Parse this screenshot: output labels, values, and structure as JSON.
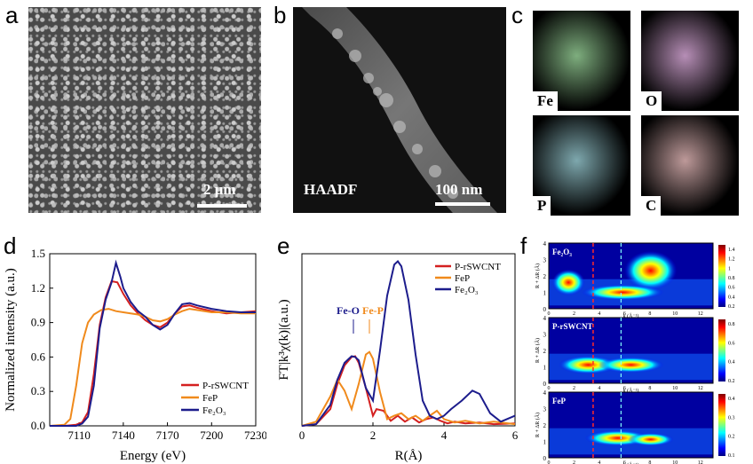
{
  "panels": {
    "a": {
      "label": "a",
      "scalebar": "2 μm"
    },
    "b": {
      "label": "b",
      "scalebar": "100 nm",
      "mode": "HAADF"
    },
    "c": {
      "label": "c",
      "maps": [
        "Fe",
        "O",
        "P",
        "C"
      ]
    },
    "d": {
      "label": "d"
    },
    "e": {
      "label": "e"
    },
    "f": {
      "label": "f"
    }
  },
  "chart_data": [
    {
      "type": "line",
      "panel": "d",
      "xlabel": "Energy (eV)",
      "ylabel": "Normalized intensity (a.u.)",
      "xlim": [
        7090,
        7230
      ],
      "ylim": [
        0,
        1.5
      ],
      "xticks": [
        "7110",
        "7140",
        "7170",
        "7200",
        "7230"
      ],
      "yticks": [
        "0.0",
        "0.3",
        "0.6",
        "0.9",
        "1.2",
        "1.5"
      ],
      "legend_position": "lower-right",
      "series": [
        {
          "name": "P-rSWCNT",
          "color": "#d42020",
          "x": [
            7090,
            7100,
            7108,
            7112,
            7116,
            7120,
            7124,
            7128,
            7132,
            7136,
            7140,
            7145,
            7150,
            7155,
            7160,
            7165,
            7170,
            7175,
            7180,
            7185,
            7190,
            7200,
            7210,
            7220,
            7230
          ],
          "y": [
            0.0,
            0.0,
            0.01,
            0.03,
            0.12,
            0.45,
            0.88,
            1.12,
            1.26,
            1.25,
            1.15,
            1.05,
            0.98,
            0.92,
            0.88,
            0.86,
            0.9,
            0.98,
            1.04,
            1.05,
            1.03,
            1.0,
            0.98,
            0.99,
            1.0
          ]
        },
        {
          "name": "FeP",
          "color": "#f08a1c",
          "x": [
            7090,
            7100,
            7104,
            7108,
            7112,
            7116,
            7120,
            7125,
            7130,
            7135,
            7140,
            7145,
            7150,
            7155,
            7160,
            7165,
            7170,
            7175,
            7180,
            7185,
            7190,
            7200,
            7210,
            7220,
            7230
          ],
          "y": [
            0.0,
            0.01,
            0.06,
            0.35,
            0.72,
            0.9,
            0.97,
            1.01,
            1.02,
            1.0,
            0.99,
            0.98,
            0.97,
            0.95,
            0.92,
            0.91,
            0.93,
            0.97,
            1.0,
            1.02,
            1.01,
            0.99,
            0.99,
            0.98,
            0.98
          ]
        },
        {
          "name": "Fe₂O₃",
          "color": "#1c1c8c",
          "x": [
            7090,
            7100,
            7108,
            7112,
            7116,
            7120,
            7124,
            7128,
            7132,
            7135,
            7138,
            7140,
            7145,
            7150,
            7155,
            7160,
            7165,
            7170,
            7175,
            7180,
            7185,
            7190,
            7200,
            7210,
            7220,
            7230
          ],
          "y": [
            0.0,
            0.0,
            0.0,
            0.02,
            0.08,
            0.35,
            0.85,
            1.1,
            1.25,
            1.42,
            1.3,
            1.2,
            1.08,
            1.0,
            0.95,
            0.88,
            0.84,
            0.88,
            0.98,
            1.06,
            1.07,
            1.05,
            1.02,
            1.0,
            0.99,
            0.99
          ]
        }
      ]
    },
    {
      "type": "line",
      "panel": "e",
      "xlabel": "R(Å)",
      "ylabel": "FT|k³χ(k)|(a.u.)",
      "xlim": [
        0,
        6
      ],
      "xticks": [
        "0",
        "2",
        "4",
        "6"
      ],
      "legend_position": "top-right",
      "annotations": [
        {
          "text": "Fe-O",
          "x": 1.45,
          "color": "#1c1c8c"
        },
        {
          "text": "Fe-P",
          "x": 1.9,
          "color": "#f08a1c"
        }
      ],
      "series": [
        {
          "name": "P-rSWCNT",
          "color": "#d42020",
          "x": [
            0,
            0.4,
            0.8,
            1.0,
            1.2,
            1.4,
            1.5,
            1.6,
            1.8,
            2.0,
            2.1,
            2.3,
            2.5,
            2.7,
            2.9,
            3.1,
            3.3,
            3.5,
            3.7,
            3.9,
            4.1,
            4.3,
            4.6,
            5.0,
            5.4,
            6.0
          ],
          "y": [
            0.0,
            0.02,
            0.2,
            0.5,
            0.72,
            0.82,
            0.83,
            0.75,
            0.45,
            0.12,
            0.2,
            0.18,
            0.06,
            0.12,
            0.05,
            0.1,
            0.04,
            0.08,
            0.1,
            0.06,
            0.03,
            0.05,
            0.03,
            0.04,
            0.02,
            0.03
          ]
        },
        {
          "name": "FeP",
          "color": "#f08a1c",
          "x": [
            0,
            0.4,
            0.8,
            1.0,
            1.2,
            1.4,
            1.6,
            1.8,
            1.9,
            2.0,
            2.2,
            2.4,
            2.6,
            2.8,
            3.0,
            3.2,
            3.4,
            3.6,
            3.8,
            4.0,
            4.3,
            4.6,
            5.0,
            5.4,
            6.0
          ],
          "y": [
            0.0,
            0.05,
            0.35,
            0.55,
            0.42,
            0.2,
            0.5,
            0.85,
            0.88,
            0.8,
            0.4,
            0.08,
            0.12,
            0.15,
            0.08,
            0.12,
            0.06,
            0.12,
            0.18,
            0.08,
            0.04,
            0.06,
            0.03,
            0.05,
            0.02
          ]
        },
        {
          "name": "Fe₂O₃",
          "color": "#1c1c8c",
          "x": [
            0,
            0.4,
            0.8,
            1.0,
            1.2,
            1.4,
            1.5,
            1.6,
            1.8,
            2.0,
            2.2,
            2.4,
            2.6,
            2.7,
            2.8,
            3.0,
            3.2,
            3.4,
            3.6,
            3.8,
            4.0,
            4.2,
            4.5,
            4.8,
            5.0,
            5.3,
            5.6,
            6.0
          ],
          "y": [
            0.0,
            0.02,
            0.25,
            0.55,
            0.75,
            0.83,
            0.82,
            0.78,
            0.45,
            0.3,
            0.9,
            1.55,
            1.92,
            1.96,
            1.9,
            1.5,
            0.85,
            0.3,
            0.12,
            0.08,
            0.12,
            0.2,
            0.3,
            0.42,
            0.38,
            0.15,
            0.05,
            0.12
          ]
        }
      ]
    },
    {
      "type": "heatmap",
      "panel": "f",
      "xlabel": "k (Å⁻¹)",
      "ylabel": "R + ΔR (Å)",
      "xticks": [
        "0",
        "2",
        "4",
        "6",
        "8",
        "10",
        "12"
      ],
      "yticks": [
        "0",
        "1",
        "2",
        "3",
        "4"
      ],
      "plots": [
        {
          "name": "Fe₂O₃",
          "colorbar": [
            "1.4",
            "1.2",
            "1",
            "0.8",
            "0.6",
            "0.4",
            "0.2"
          ]
        },
        {
          "name": "P-rSWCNT",
          "colorbar": [
            "0.8",
            "0.6",
            "0.4",
            "0.2"
          ]
        },
        {
          "name": "FeP",
          "colorbar": [
            "0.4",
            "0.3",
            "0.2",
            "0.1"
          ]
        }
      ]
    }
  ]
}
